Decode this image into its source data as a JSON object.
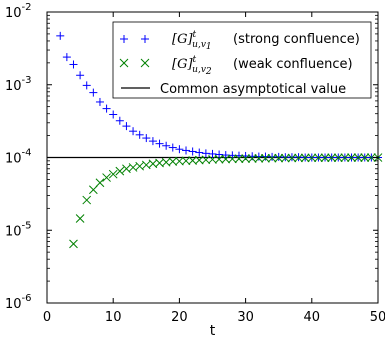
{
  "chart_data": {
    "type": "scatter",
    "xlabel": "t",
    "ylabel": "",
    "xlim": [
      0,
      50
    ],
    "ylim": [
      1e-06,
      0.01
    ],
    "yscale": "log",
    "grid": false,
    "legend_position": "top-right",
    "x_ticks": [
      0,
      10,
      20,
      30,
      40,
      50
    ],
    "x_tick_labels": [
      "0",
      "10",
      "20",
      "30",
      "40",
      "50"
    ],
    "y_ticks": [
      1e-06,
      1e-05,
      0.0001,
      0.001,
      0.01
    ],
    "y_tick_labels": [
      {
        "base": "10",
        "exp": "-6"
      },
      {
        "base": "10",
        "exp": "-5"
      },
      {
        "base": "10",
        "exp": "-4"
      },
      {
        "base": "10",
        "exp": "-3"
      },
      {
        "base": "10",
        "exp": "-2"
      }
    ],
    "series": [
      {
        "name": "(strong confluence)",
        "math": {
          "base": "[G]",
          "sup": "t",
          "sub": "u,v",
          "subsub": "1"
        },
        "marker": "plus",
        "color": "#0000ff",
        "x": [
          2,
          3,
          4,
          5,
          6,
          7,
          8,
          9,
          10,
          11,
          12,
          13,
          14,
          15,
          16,
          17,
          18,
          19,
          20,
          21,
          22,
          23,
          24,
          25,
          26,
          27,
          28,
          29,
          30,
          31,
          32,
          33,
          34,
          35,
          36,
          37,
          38,
          39,
          40,
          41,
          42,
          43,
          44,
          45,
          46,
          47,
          48,
          49,
          50
        ],
        "y": [
          0.0047,
          0.0024,
          0.0019,
          0.00135,
          0.00098,
          0.00078,
          0.00058,
          0.00047,
          0.00039,
          0.00032,
          0.00027,
          0.00023,
          0.000205,
          0.000185,
          0.000168,
          0.000155,
          0.000145,
          0.000137,
          0.00013,
          0.000125,
          0.000121,
          0.000117,
          0.000114,
          0.000112,
          0.00011,
          0.000108,
          0.000107,
          0.000106,
          0.000105,
          0.000104,
          0.000103,
          0.000103,
          0.000102,
          0.000102,
          0.000101,
          0.000101,
          0.000101,
          0.0001,
          0.0001,
          0.0001,
          0.0001,
          0.0001,
          0.0001,
          0.0001,
          0.0001,
          0.0001,
          0.0001,
          0.0001,
          0.0001
        ]
      },
      {
        "name": "(weak confluence)",
        "math": {
          "base": "[G]",
          "sup": "t",
          "sub": "u,v",
          "subsub": "2"
        },
        "marker": "x",
        "color": "#008000",
        "x": [
          4,
          5,
          6,
          7,
          8,
          9,
          10,
          11,
          12,
          13,
          14,
          15,
          16,
          17,
          18,
          19,
          20,
          21,
          22,
          23,
          24,
          25,
          26,
          27,
          28,
          29,
          30,
          31,
          32,
          33,
          34,
          35,
          36,
          37,
          38,
          39,
          40,
          41,
          42,
          43,
          44,
          45,
          46,
          47,
          48,
          49,
          50
        ],
        "y": [
          6.5e-06,
          1.45e-05,
          2.6e-05,
          3.6e-05,
          4.5e-05,
          5.3e-05,
          5.9e-05,
          6.5e-05,
          7e-05,
          7.3e-05,
          7.6e-05,
          7.9e-05,
          8.2e-05,
          8.4e-05,
          8.6e-05,
          8.8e-05,
          8.9e-05,
          9e-05,
          9.1e-05,
          9.2e-05,
          9.3e-05,
          9.4e-05,
          9.45e-05,
          9.5e-05,
          9.55e-05,
          9.6e-05,
          9.65e-05,
          9.7e-05,
          9.73e-05,
          9.76e-05,
          9.78e-05,
          9.8e-05,
          9.82e-05,
          9.84e-05,
          9.86e-05,
          9.88e-05,
          9.9e-05,
          9.9e-05,
          9.91e-05,
          9.92e-05,
          9.93e-05,
          9.94e-05,
          9.95e-05,
          9.96e-05,
          9.97e-05,
          9.98e-05,
          9.98e-05
        ]
      },
      {
        "name": "Common asymptotical value",
        "type": "hline",
        "color": "#000000",
        "value": 0.0001
      }
    ]
  }
}
